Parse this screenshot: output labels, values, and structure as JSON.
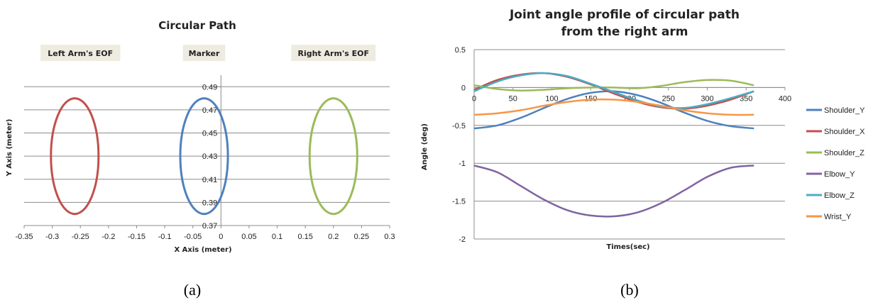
{
  "figure": {
    "caption_a": "(a)",
    "caption_b": "(b)"
  },
  "chart_data": [
    {
      "type": "scatter",
      "title": "Circular Path",
      "xlabel": "X Axis (meter)",
      "ylabel": "Y Axis (meter)",
      "xlim": [
        -0.35,
        0.3
      ],
      "ylim": [
        0.37,
        0.5
      ],
      "x_ticks": [
        "-0.35",
        "-0.3",
        "-0.25",
        "-0.2",
        "-0.15",
        "-0.1",
        "-0.05",
        "0",
        "0.05",
        "0.1",
        "0.15",
        "0.2",
        "0.25",
        "0.3"
      ],
      "y_ticks": [
        "0.37",
        "0.39",
        "0.41",
        "0.43",
        "0.45",
        "0.47",
        "0.49"
      ],
      "annotations": [
        {
          "text": "Left Arm's EOF",
          "x": -0.25
        },
        {
          "text": "Marker",
          "x": -0.03
        },
        {
          "text": "Right Arm's EOF",
          "x": 0.2
        }
      ],
      "series": [
        {
          "name": "Left Arm's EOF",
          "color": "#c0504d",
          "cx": -0.26,
          "cy": 0.43,
          "rx": 0.055,
          "ry": 0.05
        },
        {
          "name": "Marker",
          "color": "#4f81bd",
          "cx": -0.03,
          "cy": 0.43,
          "rx": 0.055,
          "ry": 0.05
        },
        {
          "name": "Right Arm's EOF",
          "color": "#9bbb59",
          "cx": 0.2,
          "cy": 0.43,
          "rx": 0.055,
          "ry": 0.05
        }
      ]
    },
    {
      "type": "line",
      "title": "Joint angle profile of circular path from the right arm",
      "title_lines": [
        "Joint angle profile of circular path",
        "from the right arm"
      ],
      "xlabel": "Times(sec)",
      "ylabel": "Angle (deg)",
      "xlim": [
        0,
        400
      ],
      "ylim": [
        -2,
        0.5
      ],
      "x_ticks": [
        "0",
        "50",
        "100",
        "150",
        "200",
        "250",
        "300",
        "350",
        "400"
      ],
      "y_ticks": [
        "0.5",
        "0",
        "-0.5",
        "-1",
        "-1.5",
        "-2"
      ],
      "legend": "right",
      "series": [
        {
          "name": "Shoulder_Y",
          "color": "#4f81bd",
          "x": [
            0,
            30,
            60,
            90,
            120,
            150,
            180,
            210,
            240,
            270,
            300,
            330,
            360
          ],
          "y": [
            -0.54,
            -0.5,
            -0.4,
            -0.27,
            -0.15,
            -0.07,
            -0.05,
            -0.1,
            -0.2,
            -0.33,
            -0.44,
            -0.51,
            -0.54
          ]
        },
        {
          "name": "Shoulder_X",
          "color": "#c0504d",
          "x": [
            0,
            30,
            60,
            90,
            120,
            150,
            180,
            210,
            240,
            270,
            300,
            330,
            360
          ],
          "y": [
            -0.03,
            0.1,
            0.17,
            0.19,
            0.14,
            0.04,
            -0.08,
            -0.19,
            -0.26,
            -0.28,
            -0.24,
            -0.16,
            -0.05
          ]
        },
        {
          "name": "Shoulder_Z",
          "color": "#9bbb59",
          "x": [
            0,
            30,
            60,
            90,
            120,
            150,
            180,
            210,
            240,
            270,
            300,
            330,
            360
          ],
          "y": [
            0.03,
            -0.02,
            -0.04,
            -0.03,
            -0.01,
            0.0,
            0.0,
            -0.01,
            0.02,
            0.07,
            0.1,
            0.09,
            0.03
          ]
        },
        {
          "name": "Elbow_Y",
          "color": "#8064a2",
          "x": [
            0,
            30,
            60,
            90,
            120,
            150,
            180,
            210,
            240,
            270,
            300,
            330,
            360
          ],
          "y": [
            -1.03,
            -1.12,
            -1.3,
            -1.48,
            -1.62,
            -1.69,
            -1.7,
            -1.65,
            -1.53,
            -1.36,
            -1.18,
            -1.06,
            -1.03
          ]
        },
        {
          "name": "Elbow_Z",
          "color": "#4bacc6",
          "x": [
            0,
            30,
            60,
            90,
            120,
            150,
            180,
            210,
            240,
            270,
            300,
            330,
            360
          ],
          "y": [
            -0.05,
            0.08,
            0.16,
            0.19,
            0.15,
            0.05,
            -0.06,
            -0.17,
            -0.25,
            -0.27,
            -0.22,
            -0.14,
            -0.05
          ]
        },
        {
          "name": "Wrist_Y",
          "color": "#f79646",
          "x": [
            0,
            30,
            60,
            90,
            120,
            150,
            180,
            210,
            240,
            270,
            300,
            330,
            360
          ],
          "y": [
            -0.36,
            -0.34,
            -0.3,
            -0.24,
            -0.19,
            -0.16,
            -0.16,
            -0.19,
            -0.24,
            -0.3,
            -0.34,
            -0.36,
            -0.36
          ]
        }
      ]
    }
  ]
}
